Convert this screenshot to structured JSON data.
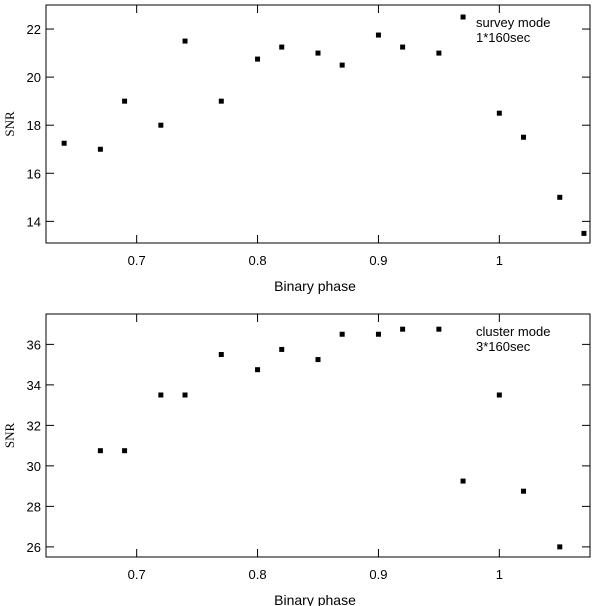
{
  "chart_data": [
    {
      "type": "scatter",
      "xlabel": "Binary phase",
      "ylabel": "SNR",
      "xlim": [
        0.625,
        1.075
      ],
      "ylim": [
        13.1,
        23
      ],
      "xticks": [
        0.7,
        0.8,
        0.9,
        1
      ],
      "xtick_labels": [
        "0.7",
        "0.8",
        "0.9",
        "1"
      ],
      "yticks": [
        14,
        16,
        18,
        20,
        22
      ],
      "ytick_labels": [
        "14",
        "16",
        "18",
        "20",
        "22"
      ],
      "annotation": [
        "survey mode",
        "1*160sec"
      ],
      "grid": false,
      "points": [
        {
          "x": 0.64,
          "y": 17.25
        },
        {
          "x": 0.67,
          "y": 17.0
        },
        {
          "x": 0.69,
          "y": 19.0
        },
        {
          "x": 0.72,
          "y": 18.0
        },
        {
          "x": 0.74,
          "y": 21.5
        },
        {
          "x": 0.77,
          "y": 19.0
        },
        {
          "x": 0.8,
          "y": 20.75
        },
        {
          "x": 0.82,
          "y": 21.25
        },
        {
          "x": 0.85,
          "y": 21.0
        },
        {
          "x": 0.87,
          "y": 20.5
        },
        {
          "x": 0.9,
          "y": 21.75
        },
        {
          "x": 0.92,
          "y": 21.25
        },
        {
          "x": 0.95,
          "y": 21.0
        },
        {
          "x": 0.97,
          "y": 22.5
        },
        {
          "x": 1.0,
          "y": 18.5
        },
        {
          "x": 1.02,
          "y": 17.5
        },
        {
          "x": 1.05,
          "y": 15.0
        },
        {
          "x": 1.07,
          "y": 13.5
        }
      ]
    },
    {
      "type": "scatter",
      "xlabel": "Binary phase",
      "ylabel": "SNR",
      "xlim": [
        0.625,
        1.075
      ],
      "ylim": [
        25.5,
        37.5
      ],
      "xticks": [
        0.7,
        0.8,
        0.9,
        1
      ],
      "xtick_labels": [
        "0.7",
        "0.8",
        "0.9",
        "1"
      ],
      "yticks": [
        26,
        28,
        30,
        32,
        34,
        36
      ],
      "ytick_labels": [
        "26",
        "28",
        "30",
        "32",
        "34",
        "36"
      ],
      "annotation": [
        "cluster mode",
        "3*160sec"
      ],
      "grid": false,
      "points": [
        {
          "x": 0.67,
          "y": 30.75
        },
        {
          "x": 0.69,
          "y": 30.75
        },
        {
          "x": 0.72,
          "y": 33.5
        },
        {
          "x": 0.74,
          "y": 33.5
        },
        {
          "x": 0.77,
          "y": 35.5
        },
        {
          "x": 0.8,
          "y": 34.75
        },
        {
          "x": 0.82,
          "y": 35.75
        },
        {
          "x": 0.85,
          "y": 35.25
        },
        {
          "x": 0.87,
          "y": 36.5
        },
        {
          "x": 0.9,
          "y": 36.5
        },
        {
          "x": 0.92,
          "y": 36.75
        },
        {
          "x": 0.95,
          "y": 36.75
        },
        {
          "x": 0.97,
          "y": 29.25
        },
        {
          "x": 1.0,
          "y": 33.5
        },
        {
          "x": 1.02,
          "y": 28.75
        },
        {
          "x": 1.05,
          "y": 26.0
        }
      ]
    }
  ]
}
